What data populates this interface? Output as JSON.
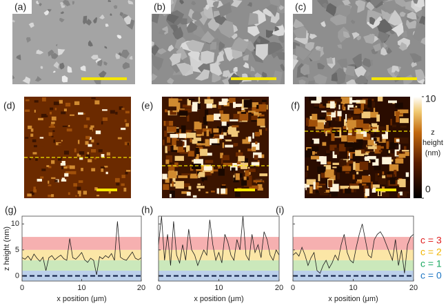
{
  "figure": {
    "sem_panels": [
      {
        "label": "(a)"
      },
      {
        "label": "(b)"
      },
      {
        "label": "(c)"
      }
    ],
    "afm_panels": [
      {
        "label": "(d)"
      },
      {
        "label": "(e)"
      },
      {
        "label": "(f)"
      }
    ],
    "colorbar": {
      "lim": [
        0,
        10
      ],
      "ticks": [
        0,
        10
      ],
      "label_lines": [
        "z",
        "height",
        "(nm)"
      ]
    },
    "level_legend": [
      {
        "label": "c = 3",
        "color": "#e02020"
      },
      {
        "label": "c = 2",
        "color": "#f0b400"
      },
      {
        "label": "c = 1",
        "color": "#1aa860"
      },
      {
        "label": "c = 0",
        "color": "#1f77c4"
      }
    ]
  },
  "chart_data": [
    {
      "type": "line",
      "panel_label": "(g)",
      "xlabel": "x position (μm)",
      "ylabel": "z height (nm)",
      "xlim": [
        0,
        20
      ],
      "xticks": [
        0,
        10,
        20
      ],
      "ylim": [
        -1,
        11.5
      ],
      "yticks": [
        0,
        5,
        10
      ],
      "show_ytick_labels": true,
      "bands": [
        {
          "range": [
            5,
            7.5
          ],
          "color": "#f6b0b0"
        },
        {
          "range": [
            3,
            5
          ],
          "color": "#fbe6a6"
        },
        {
          "range": [
            1,
            3
          ],
          "color": "#cbe8bb"
        },
        {
          "range": [
            -1,
            1
          ],
          "color": "#bcd0ea"
        }
      ],
      "baseline": 0,
      "x": [
        0,
        0.5,
        1,
        1.5,
        2,
        2.5,
        3,
        3.5,
        4,
        4.5,
        5,
        5.5,
        6,
        6.5,
        7,
        7.5,
        8,
        8.5,
        9,
        9.5,
        10,
        10.5,
        11,
        11.5,
        12,
        12.5,
        13,
        13.5,
        14,
        14.5,
        15,
        15.5,
        16,
        16.5,
        17,
        17.5,
        18,
        18.5,
        19,
        19.5,
        20
      ],
      "series": [
        {
          "color": "#1a1a1a",
          "values": [
            3.5,
            3.2,
            3.8,
            3.0,
            4.2,
            3.4,
            2.8,
            3.6,
            1.0,
            3.5,
            3.9,
            3.1,
            3.6,
            4.0,
            3.3,
            3.0,
            7.2,
            3.5,
            3.2,
            3.8,
            4.5,
            3.1,
            2.6,
            3.4,
            3.0,
            0.2,
            3.7,
            3.3,
            3.9,
            3.5,
            4.3,
            3.0,
            10.5,
            3.6,
            3.2,
            3.0,
            3.8,
            4.6,
            3.4,
            3.1,
            3.5
          ]
        }
      ]
    },
    {
      "type": "line",
      "panel_label": "(h)",
      "xlabel": "x position (μm)",
      "xlim": [
        0,
        20
      ],
      "xticks": [
        0,
        10,
        20
      ],
      "ylim": [
        -1,
        11.5
      ],
      "yticks": [
        0,
        5,
        10
      ],
      "show_ytick_labels": false,
      "bands": [
        {
          "range": [
            5,
            7.5
          ],
          "color": "#f6b0b0"
        },
        {
          "range": [
            3,
            5
          ],
          "color": "#fbe6a6"
        },
        {
          "range": [
            1,
            3
          ],
          "color": "#cbe8bb"
        },
        {
          "range": [
            -1,
            1
          ],
          "color": "#bcd0ea"
        }
      ],
      "baseline": 0,
      "x": [
        0,
        0.5,
        1,
        1.5,
        2,
        2.5,
        3,
        3.5,
        4,
        4.5,
        5,
        5.5,
        6,
        6.5,
        7,
        7.5,
        8,
        8.5,
        9,
        9.5,
        10,
        10.5,
        11,
        11.5,
        12,
        12.5,
        13,
        13.5,
        14,
        14.5,
        15,
        15.5,
        16,
        16.5,
        17,
        17.5,
        18,
        18.5,
        19,
        19.5,
        20
      ],
      "series": [
        {
          "color": "#1a1a1a",
          "values": [
            6,
            11.5,
            3,
            8,
            2,
            10.5,
            4,
            2.5,
            6,
            3,
            9,
            5,
            4,
            2,
            3.5,
            5,
            4,
            10.8,
            6,
            3,
            4.5,
            2.5,
            8,
            6.5,
            4,
            3,
            7,
            5,
            11.5,
            4,
            3,
            8,
            4.5,
            6,
            3.5,
            8.5,
            7,
            4,
            3,
            5,
            4
          ]
        }
      ]
    },
    {
      "type": "line",
      "panel_label": "(i)",
      "xlabel": "x position (μm)",
      "xlim": [
        0,
        20
      ],
      "xticks": [
        0,
        10,
        20
      ],
      "ylim": [
        -1,
        11.5
      ],
      "yticks": [
        0,
        5,
        10
      ],
      "show_ytick_labels": false,
      "bands": [
        {
          "range": [
            5,
            7.5
          ],
          "color": "#f6b0b0"
        },
        {
          "range": [
            3,
            5
          ],
          "color": "#fbe6a6"
        },
        {
          "range": [
            1,
            3
          ],
          "color": "#cbe8bb"
        },
        {
          "range": [
            -1,
            1
          ],
          "color": "#bcd0ea"
        }
      ],
      "baseline": 0,
      "x": [
        0,
        0.5,
        1,
        1.5,
        2,
        2.5,
        3,
        3.5,
        4,
        4.5,
        5,
        5.5,
        6,
        6.5,
        7,
        7.5,
        8,
        8.5,
        9,
        9.5,
        10,
        10.5,
        11,
        11.5,
        12,
        12.5,
        13,
        13.5,
        14,
        14.5,
        15,
        15.5,
        16,
        16.5,
        17,
        17.5,
        18,
        18.5,
        19,
        19.5,
        20
      ],
      "series": [
        {
          "color": "#1a1a1a",
          "values": [
            4,
            4.5,
            3.8,
            5.5,
            4,
            2,
            3.5,
            4.5,
            1,
            0.5,
            2,
            3,
            1.5,
            2.5,
            4,
            3,
            6,
            8,
            4.5,
            3,
            2.5,
            5.5,
            8,
            10,
            7,
            4,
            3.5,
            7,
            8,
            8.5,
            7.5,
            6,
            4.5,
            3,
            7,
            2,
            5,
            0.5,
            6,
            7.5,
            8
          ]
        }
      ]
    }
  ]
}
